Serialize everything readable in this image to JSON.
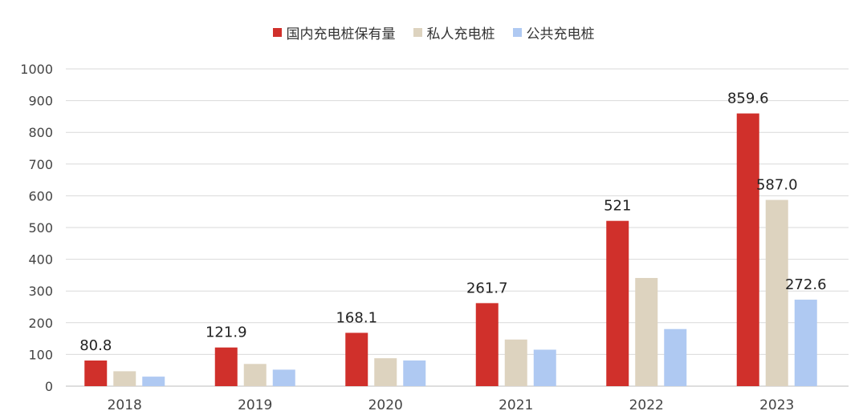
{
  "chart_data": {
    "type": "bar",
    "categories": [
      "2018",
      "2019",
      "2020",
      "2021",
      "2022",
      "2023"
    ],
    "series": [
      {
        "name": "国内充电桩保有量",
        "color": "#d0302b",
        "values": [
          80.8,
          121.9,
          168.1,
          261.7,
          521,
          859.6
        ],
        "labels": [
          "80.8",
          "121.9",
          "168.1",
          "261.7",
          "521",
          "859.6"
        ]
      },
      {
        "name": "私人充电桩",
        "color": "#ddd3bf",
        "values": [
          47,
          70,
          88,
          147,
          341,
          587.0
        ],
        "labels": [
          "",
          "",
          "",
          "",
          "",
          "587.0"
        ]
      },
      {
        "name": "公共充电桩",
        "color": "#afc9f2",
        "values": [
          30,
          52,
          81,
          115,
          180,
          272.6
        ],
        "labels": [
          "",
          "",
          "",
          "",
          "",
          "272.6"
        ]
      }
    ],
    "yticks": [
      "0",
      "100",
      "200",
      "300",
      "400",
      "500",
      "600",
      "700",
      "800",
      "900",
      "1000"
    ],
    "ylim": [
      0,
      1000
    ],
    "grid": true,
    "legend_position": "top-center"
  }
}
